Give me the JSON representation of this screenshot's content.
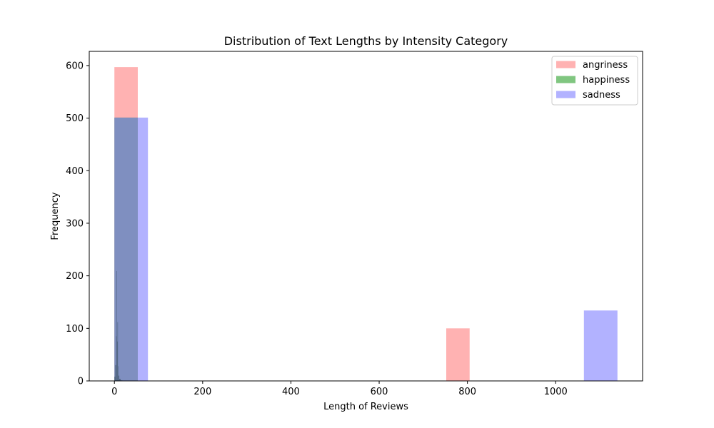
{
  "chart_data": {
    "type": "bar",
    "title": "Distribution of Text Lengths by Intensity Category",
    "xlabel": "Length of Reviews",
    "ylabel": "Frequency",
    "xlim": [
      -57,
      1197
    ],
    "ylim": [
      0,
      627
    ],
    "x_ticks": [
      0,
      200,
      400,
      600,
      800,
      1000
    ],
    "y_ticks": [
      0,
      100,
      200,
      300,
      400,
      500,
      600
    ],
    "grid": false,
    "legend_position": "top-right",
    "series": [
      {
        "name": "angriness",
        "color": "#ff7f7f",
        "opacity": 0.6,
        "bins": [
          {
            "x0": 0,
            "x1": 53,
            "value": 597
          },
          {
            "x0": 752,
            "x1": 805,
            "value": 100
          }
        ]
      },
      {
        "name": "happiness",
        "color": "#2ca02c",
        "opacity": 0.6,
        "bins": [
          {
            "x0": 0,
            "x1": 53,
            "value": 501
          }
        ]
      },
      {
        "name": "sadness",
        "color": "#7f7fff",
        "opacity": 0.6,
        "bins": [
          {
            "x0": 0,
            "x1": 76,
            "value": 501
          },
          {
            "x0": 1064,
            "x1": 1140,
            "value": 134
          }
        ]
      },
      {
        "name": "",
        "color": "#4a5f78",
        "opacity": 0.85,
        "bins": [
          {
            "x0": 0,
            "x1": 2,
            "value": 8
          },
          {
            "x0": 2,
            "x1": 4,
            "value": 30
          },
          {
            "x0": 4,
            "x1": 5,
            "value": 85
          },
          {
            "x0": 5,
            "x1": 6,
            "value": 209
          },
          {
            "x0": 6,
            "x1": 7,
            "value": 75
          },
          {
            "x0": 7,
            "x1": 8,
            "value": 112
          },
          {
            "x0": 8,
            "x1": 9,
            "value": 28
          },
          {
            "x0": 9,
            "x1": 11,
            "value": 10
          },
          {
            "x0": 11,
            "x1": 14,
            "value": 4
          },
          {
            "x0": 14,
            "x1": 18,
            "value": 1
          }
        ]
      }
    ]
  }
}
